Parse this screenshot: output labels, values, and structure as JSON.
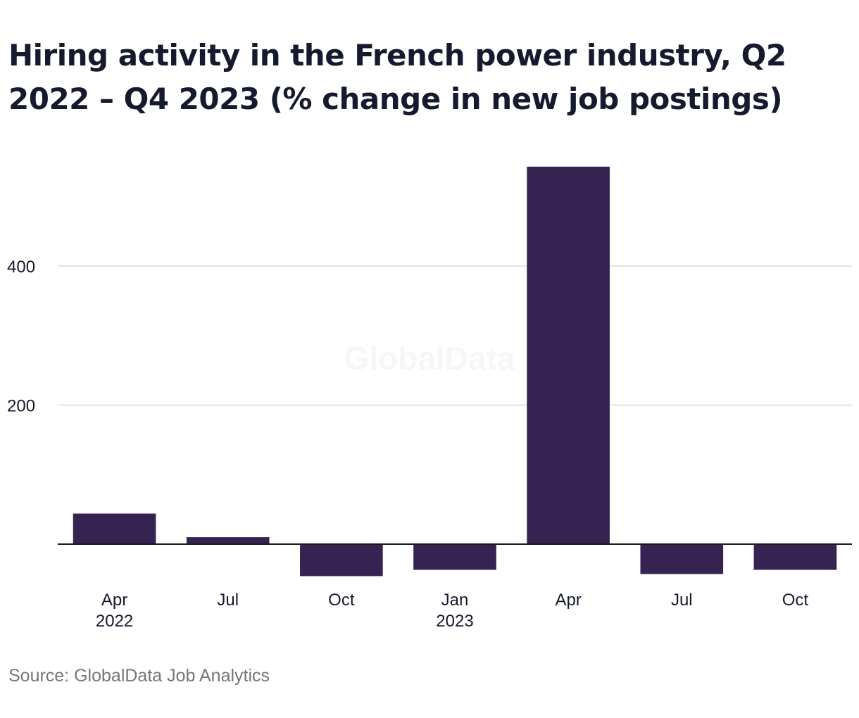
{
  "title": "Hiring activity in the French power industry, Q2 2022 – Q4 2023 (% change in new job postings)",
  "source": "Source: GlobalData Job Analytics",
  "watermark": "GlobalData",
  "colors": {
    "bar": "#362352",
    "grid": "#d9d9d9",
    "axis": "#1a1a1a",
    "text": "#161a2e",
    "muted": "#767676"
  },
  "chart_data": {
    "type": "bar",
    "categories": [
      "Q2 2022",
      "Q3 2022",
      "Q4 2022",
      "Q1 2023",
      "Q2 2023",
      "Q3 2023",
      "Q4 2023"
    ],
    "tick_labels": [
      [
        "Apr",
        "2022"
      ],
      [
        "Jul"
      ],
      [
        "Oct"
      ],
      [
        "Jan",
        "2023"
      ],
      [
        "Apr"
      ],
      [
        "Jul"
      ],
      [
        "Oct"
      ]
    ],
    "values": [
      44,
      10,
      -46,
      -37,
      543,
      -43,
      -37
    ],
    "yticks": [
      200,
      400
    ],
    "ylim": [
      -60,
      600
    ],
    "grid": true,
    "legend": "none"
  }
}
